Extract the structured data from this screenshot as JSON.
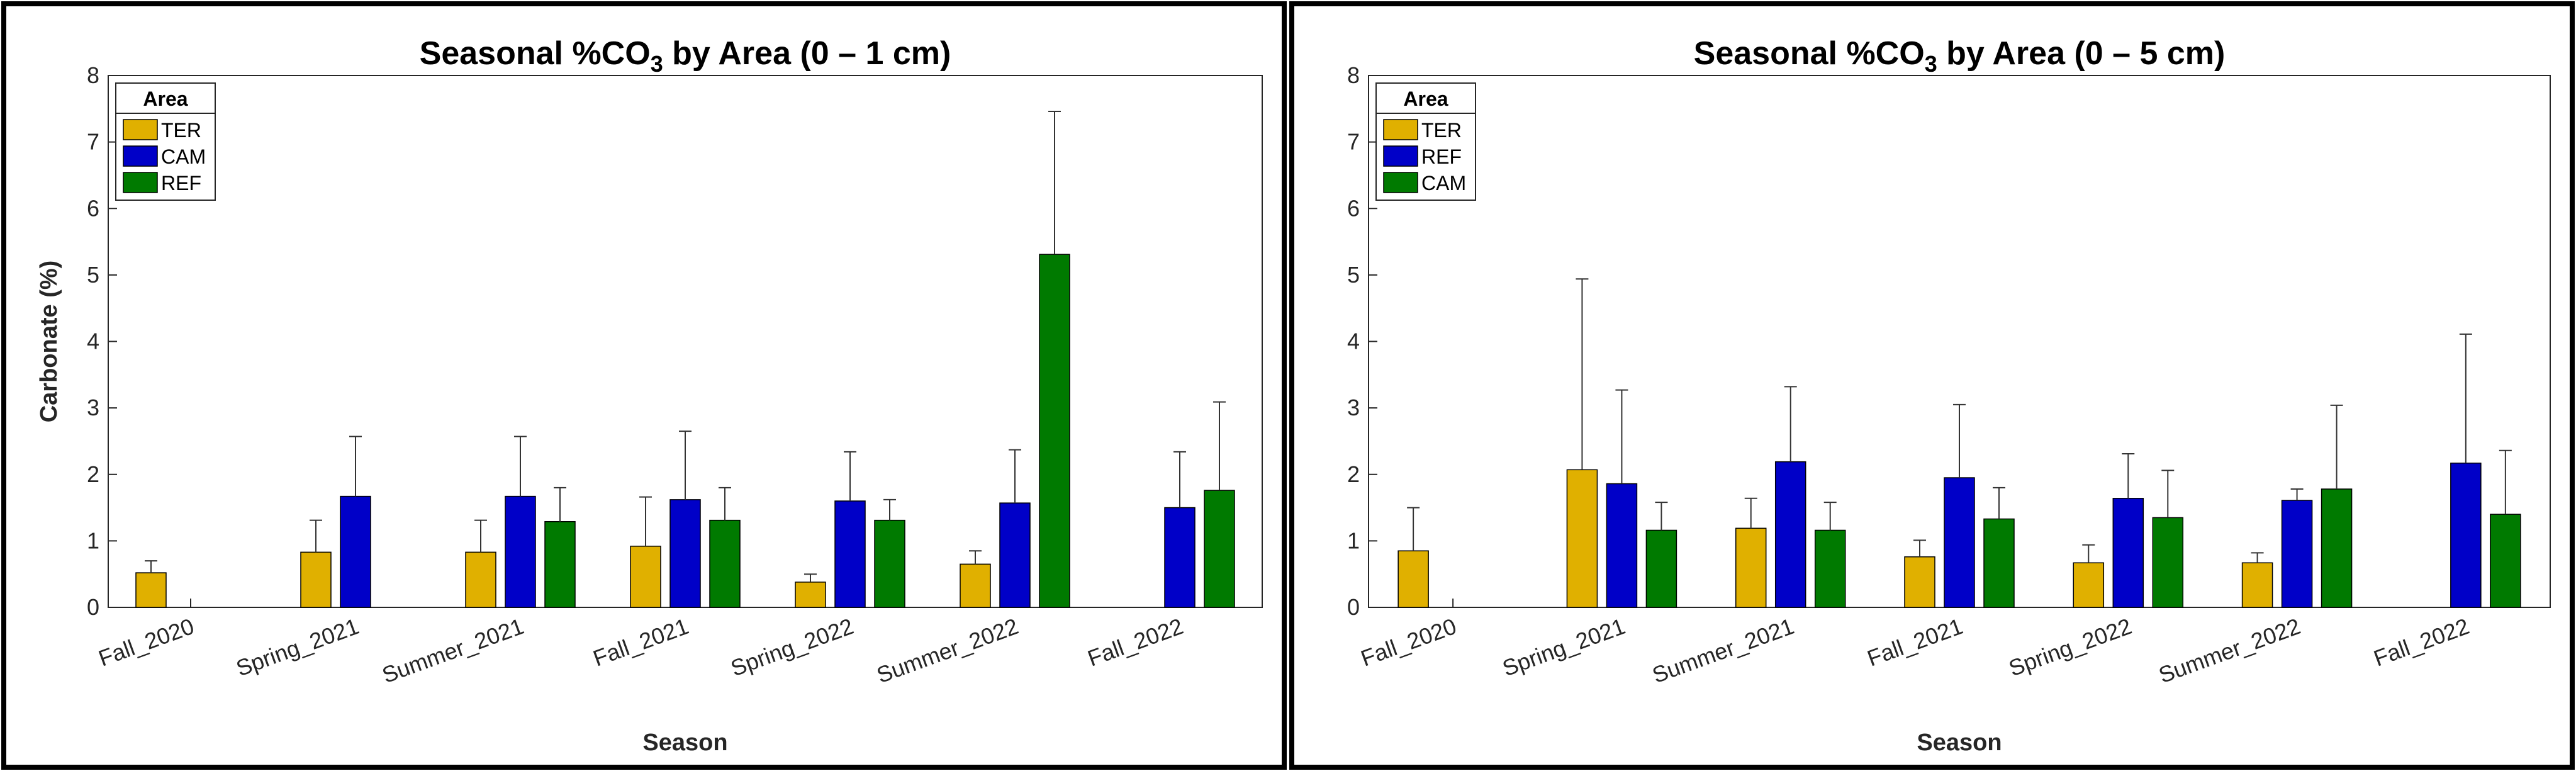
{
  "chart_data": [
    {
      "type": "bar",
      "title_main": "Seasonal %CO",
      "title_sub": "3",
      "title_rest": " by Area (0 – 1 cm)",
      "xlabel": "Season",
      "ylabel": "Carbonate (%)",
      "ylim": [
        0,
        8
      ],
      "yticks": [
        "0",
        "1",
        "2",
        "3",
        "4",
        "5",
        "6",
        "7",
        "8"
      ],
      "categories": [
        "Fall_2020",
        "Spring_2021",
        "Summer_2021",
        "Fall_2021",
        "Spring_2022",
        "Summer_2022",
        "Fall_2022"
      ],
      "legend_title": "Area",
      "legend_position": "top-left",
      "series": [
        {
          "name": "TER",
          "color": "#E0B000",
          "values": [
            0.52,
            0.83,
            0.83,
            0.92,
            0.38,
            0.65,
            null
          ],
          "error": [
            0.18,
            0.48,
            0.48,
            0.74,
            0.12,
            0.2,
            null
          ]
        },
        {
          "name": "CAM",
          "color": "#0000C8",
          "values": [
            null,
            1.67,
            1.67,
            1.62,
            1.6,
            1.57,
            1.5
          ],
          "error": [
            null,
            0.9,
            0.9,
            1.03,
            0.74,
            0.8,
            0.84
          ]
        },
        {
          "name": "REF",
          "color": "#007A00",
          "values": [
            null,
            null,
            1.29,
            1.31,
            1.31,
            5.31,
            1.76
          ],
          "error": [
            null,
            null,
            0.51,
            0.49,
            0.31,
            2.15,
            1.33
          ]
        }
      ]
    },
    {
      "type": "bar",
      "title_main": "Seasonal %CO",
      "title_sub": "3",
      "title_rest": " by Area (0 – 5 cm)",
      "xlabel": "Season",
      "ylabel": "",
      "ylim": [
        0,
        8
      ],
      "yticks": [
        "0",
        "1",
        "2",
        "3",
        "4",
        "5",
        "6",
        "7",
        "8"
      ],
      "categories": [
        "Fall_2020",
        "Spring_2021",
        "Summer_2021",
        "Fall_2021",
        "Spring_2022",
        "Summer_2022",
        "Fall_2022"
      ],
      "legend_title": "Area",
      "legend_position": "top-left",
      "series": [
        {
          "name": "TER",
          "color": "#E0B000",
          "values": [
            0.85,
            2.07,
            1.19,
            0.76,
            0.67,
            0.67,
            null
          ],
          "error": [
            0.65,
            2.87,
            0.45,
            0.25,
            0.27,
            0.15,
            null
          ]
        },
        {
          "name": "REF",
          "color": "#0000C8",
          "values": [
            null,
            1.86,
            2.19,
            1.95,
            1.64,
            1.61,
            2.17
          ],
          "error": [
            null,
            1.41,
            1.13,
            1.1,
            0.67,
            0.17,
            1.94
          ]
        },
        {
          "name": "CAM",
          "color": "#007A00",
          "values": [
            null,
            1.16,
            1.16,
            1.33,
            1.35,
            1.78,
            1.4
          ],
          "error": [
            null,
            0.42,
            0.42,
            0.47,
            0.71,
            1.26,
            0.96
          ]
        }
      ]
    }
  ]
}
